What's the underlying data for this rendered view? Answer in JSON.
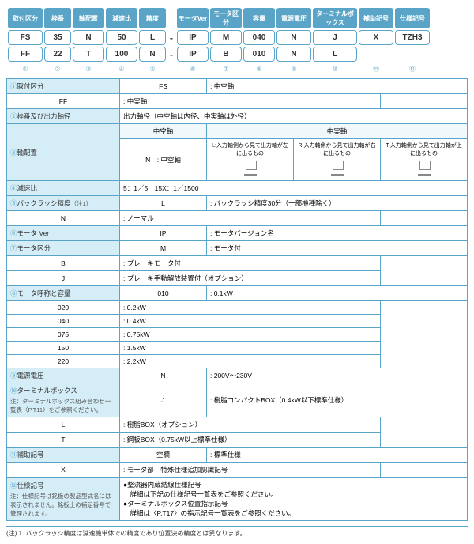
{
  "headers": [
    "取付区分",
    "枠番",
    "軸配置",
    "減速比",
    "精度",
    "",
    "モータVer",
    "モータ区分",
    "容量",
    "電源電圧",
    "ターミナルボックス",
    "補助記号",
    "仕様記号"
  ],
  "row1": [
    "FS",
    "35",
    "N",
    "50",
    "L",
    "-",
    "IP",
    "M",
    "040",
    "N",
    "J",
    "X",
    "TZH3"
  ],
  "row2": [
    "FF",
    "22",
    "T",
    "100",
    "N",
    "-",
    "IP",
    "B",
    "010",
    "N",
    "L",
    "",
    ""
  ],
  "nums": [
    "①",
    "②",
    "③",
    "④",
    "⑤",
    "",
    "⑥",
    "⑦",
    "⑧",
    "⑨",
    "⑩",
    "⑪",
    "⑫"
  ],
  "widths": [
    44,
    34,
    40,
    40,
    34,
    10,
    40,
    40,
    40,
    44,
    56,
    44,
    44
  ],
  "specs": [
    {
      "n": "①",
      "label": "取付区分",
      "rows": [
        [
          "FS",
          ": 中空軸"
        ],
        [
          "FF",
          ": 中実軸"
        ]
      ]
    },
    {
      "n": "②",
      "label": "枠番及び出力軸径",
      "rows": [
        [
          "",
          "出力軸径（中空軸は内径、中実軸は外径）"
        ]
      ]
    },
    {
      "n": "③",
      "label": "軸配置",
      "diagram": true,
      "cols": [
        "中空軸",
        "中実軸"
      ],
      "diagLabels": [
        "L:入力軸側から見て出力軸が左に出るもの",
        "R:入力軸側から見て出力軸が右に出るもの",
        "T:入力軸側から見て出力軸が上に出るもの"
      ],
      "left": "N　: 中空軸"
    },
    {
      "n": "④",
      "label": "減速比",
      "rows": [
        [
          "",
          "5：1／5　15X：1／1500"
        ]
      ]
    },
    {
      "n": "⑤",
      "label": "バックラッシ精度",
      "sub": "（注1）",
      "rows": [
        [
          "L",
          ": バックラッシ精度30分（一部機種除く）"
        ],
        [
          "N",
          ": ノーマル"
        ]
      ]
    },
    {
      "n": "⑥",
      "label": "モータ Ver",
      "rows": [
        [
          "IP",
          ": モータバージョン名"
        ]
      ]
    },
    {
      "n": "⑦",
      "label": "モータ区分",
      "rows": [
        [
          "M",
          ": モータ付"
        ],
        [
          "B",
          ": ブレーキモータ付"
        ],
        [
          "J",
          ": ブレーキ手動解放装置付（オプション）"
        ]
      ]
    },
    {
      "n": "⑧",
      "label": "モータ呼称と容量",
      "rows": [
        [
          "010",
          ": 0.1kW"
        ],
        [
          "020",
          ": 0.2kW"
        ],
        [
          "040",
          ": 0.4kW"
        ],
        [
          "075",
          ": 0.75kW"
        ],
        [
          "150",
          ": 1.5kW"
        ],
        [
          "220",
          ": 2.2kW"
        ]
      ]
    },
    {
      "n": "⑨",
      "label": "電源電圧",
      "rows": [
        [
          "N",
          ": 200V～230V"
        ]
      ]
    },
    {
      "n": "⑩",
      "label": "ターミナルボックス",
      "note": "注：ターミナルボックス組み合わせ一覧表〈P.T11〉をご参照ください。",
      "rows": [
        [
          "J",
          ": 樹脂コンパクトBOX（0.4kW以下標準仕様）"
        ],
        [
          "L",
          ": 樹脂BOX（オプション）"
        ],
        [
          "T",
          ": 鋼板BOX（0.75kW以上標準仕様）"
        ]
      ]
    },
    {
      "n": "⑪",
      "label": "補助記号",
      "rows": [
        [
          "空欄",
          ": 標準仕様"
        ],
        [
          "X",
          ": モータ部　特殊仕様追加認識記号"
        ]
      ]
    },
    {
      "n": "⑫",
      "label": "仕様記号",
      "note": "注：仕様記号は銘板の製品型式名には表示されません。銘板上の補足番号で管理されます。",
      "rows": [
        [
          "",
          "●整流器内蔵結線仕様記号\n　詳細は下記の仕様記号一覧表をご参照ください。\n●ターミナルボックス位置指示記号\n　詳細は〈P.T17〉の指示記号一覧表をご参照ください。"
        ]
      ]
    }
  ],
  "footnote": "(注) 1. バックラッシ精度は減速機単体での精度であり位置決め精度とは異なります。"
}
